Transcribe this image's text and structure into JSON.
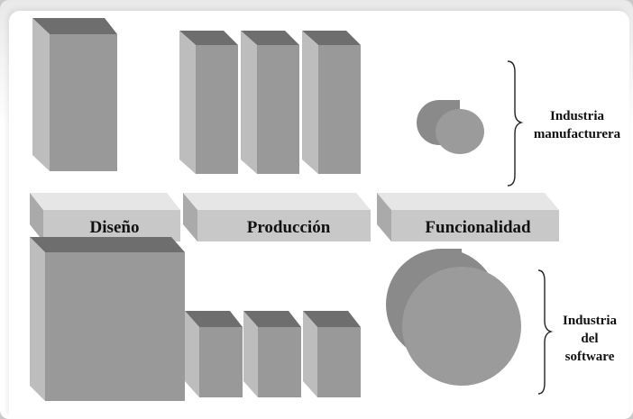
{
  "stages": {
    "design": "Diseño",
    "production": "Producción",
    "functionality": "Funcionalidad"
  },
  "groups": {
    "manufacturing": {
      "line1": "Industria",
      "line2": "manufacturera"
    },
    "software": {
      "line1": "Industria",
      "line2": "del",
      "line3": "software"
    }
  },
  "colors": {
    "front": "#999999",
    "top": "#6e6e6e",
    "side": "#bdbdbd",
    "band_front": "#c8c8c8",
    "band_top": "#e6e6e6",
    "band_side": "#aaaaaa"
  }
}
